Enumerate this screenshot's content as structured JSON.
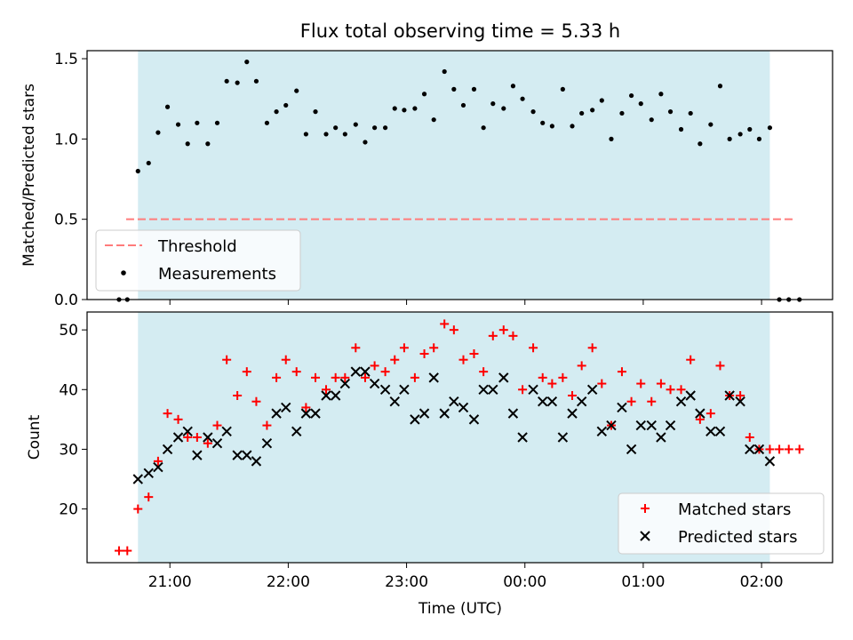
{
  "chart_data": {
    "title": "Flux total observing time = 5.33 h",
    "xlabel": "Time (UTC)",
    "x_unit": "hours (UTC)",
    "xlim": [
      20.3,
      26.6
    ],
    "xticks": [
      {
        "value": 21,
        "label": "21:00"
      },
      {
        "value": 22,
        "label": "22:00"
      },
      {
        "value": 23,
        "label": "23:00"
      },
      {
        "value": 24,
        "label": "00:00"
      },
      {
        "value": 25,
        "label": "01:00"
      },
      {
        "value": 26,
        "label": "02:00"
      }
    ],
    "observing_window": [
      20.73,
      26.07
    ],
    "window_color": "#d4ecf2",
    "panels": [
      {
        "type": "scatter",
        "ylabel": "Matched/Predicted stars",
        "ylim": [
          0,
          1.55
        ],
        "yticks": [
          "0.0",
          "0.5",
          "1.0",
          "1.5"
        ],
        "legend_position": "lower-left",
        "threshold": {
          "name": "Threshold",
          "value": 0.5,
          "x_range": [
            20.63,
            26.27
          ],
          "color": "#ff7b7b"
        },
        "series": [
          {
            "name": "Measurements",
            "color": "#000000",
            "marker": "dot",
            "points": [
              [
                20.57,
                0
              ],
              [
                20.64,
                0
              ],
              [
                20.73,
                0.8
              ],
              [
                20.82,
                0.85
              ],
              [
                20.9,
                1.04
              ],
              [
                20.98,
                1.2
              ],
              [
                21.07,
                1.09
              ],
              [
                21.15,
                0.97
              ],
              [
                21.23,
                1.1
              ],
              [
                21.32,
                0.97
              ],
              [
                21.4,
                1.1
              ],
              [
                21.48,
                1.36
              ],
              [
                21.57,
                1.35
              ],
              [
                21.65,
                1.48
              ],
              [
                21.73,
                1.36
              ],
              [
                21.82,
                1.1
              ],
              [
                21.9,
                1.17
              ],
              [
                21.98,
                1.21
              ],
              [
                22.07,
                1.3
              ],
              [
                22.15,
                1.03
              ],
              [
                22.23,
                1.17
              ],
              [
                22.32,
                1.03
              ],
              [
                22.4,
                1.07
              ],
              [
                22.48,
                1.03
              ],
              [
                22.57,
                1.09
              ],
              [
                22.65,
                0.98
              ],
              [
                22.73,
                1.07
              ],
              [
                22.82,
                1.07
              ],
              [
                22.9,
                1.19
              ],
              [
                22.98,
                1.18
              ],
              [
                23.07,
                1.19
              ],
              [
                23.15,
                1.28
              ],
              [
                23.23,
                1.12
              ],
              [
                23.32,
                1.42
              ],
              [
                23.4,
                1.31
              ],
              [
                23.48,
                1.21
              ],
              [
                23.57,
                1.31
              ],
              [
                23.65,
                1.07
              ],
              [
                23.73,
                1.22
              ],
              [
                23.82,
                1.19
              ],
              [
                23.9,
                1.33
              ],
              [
                23.98,
                1.25
              ],
              [
                24.07,
                1.17
              ],
              [
                24.15,
                1.1
              ],
              [
                24.23,
                1.08
              ],
              [
                24.32,
                1.31
              ],
              [
                24.4,
                1.08
              ],
              [
                24.48,
                1.16
              ],
              [
                24.57,
                1.18
              ],
              [
                24.65,
                1.24
              ],
              [
                24.73,
                1.0
              ],
              [
                24.82,
                1.16
              ],
              [
                24.9,
                1.27
              ],
              [
                24.98,
                1.22
              ],
              [
                25.07,
                1.12
              ],
              [
                25.15,
                1.28
              ],
              [
                25.23,
                1.17
              ],
              [
                25.32,
                1.06
              ],
              [
                25.4,
                1.16
              ],
              [
                25.48,
                0.97
              ],
              [
                25.57,
                1.09
              ],
              [
                25.65,
                1.33
              ],
              [
                25.73,
                1.0
              ],
              [
                25.82,
                1.03
              ],
              [
                25.9,
                1.06
              ],
              [
                25.98,
                1.0
              ],
              [
                26.07,
                1.07
              ],
              [
                26.15,
                0
              ],
              [
                26.23,
                0
              ],
              [
                26.32,
                0
              ]
            ]
          }
        ]
      },
      {
        "type": "scatter",
        "ylabel": "Count",
        "ylim": [
          11,
          53
        ],
        "yticks": [
          "20",
          "30",
          "40",
          "50"
        ],
        "legend_position": "lower-right",
        "series": [
          {
            "name": "Matched stars",
            "color": "#ff0000",
            "marker": "plus",
            "points": [
              [
                20.57,
                13
              ],
              [
                20.64,
                13
              ],
              [
                20.73,
                20
              ],
              [
                20.82,
                22
              ],
              [
                20.9,
                28
              ],
              [
                20.98,
                36
              ],
              [
                21.07,
                35
              ],
              [
                21.15,
                32
              ],
              [
                21.23,
                32
              ],
              [
                21.32,
                31
              ],
              [
                21.4,
                34
              ],
              [
                21.48,
                45
              ],
              [
                21.57,
                39
              ],
              [
                21.65,
                43
              ],
              [
                21.73,
                38
              ],
              [
                21.82,
                34
              ],
              [
                21.9,
                42
              ],
              [
                21.98,
                45
              ],
              [
                22.07,
                43
              ],
              [
                22.15,
                37
              ],
              [
                22.23,
                42
              ],
              [
                22.32,
                40
              ],
              [
                22.4,
                42
              ],
              [
                22.48,
                42
              ],
              [
                22.57,
                47
              ],
              [
                22.65,
                42
              ],
              [
                22.73,
                44
              ],
              [
                22.82,
                43
              ],
              [
                22.9,
                45
              ],
              [
                22.98,
                47
              ],
              [
                23.07,
                42
              ],
              [
                23.15,
                46
              ],
              [
                23.23,
                47
              ],
              [
                23.32,
                51
              ],
              [
                23.4,
                50
              ],
              [
                23.48,
                45
              ],
              [
                23.57,
                46
              ],
              [
                23.65,
                43
              ],
              [
                23.73,
                49
              ],
              [
                23.82,
                50
              ],
              [
                23.9,
                49
              ],
              [
                23.98,
                40
              ],
              [
                24.07,
                47
              ],
              [
                24.15,
                42
              ],
              [
                24.23,
                41
              ],
              [
                24.32,
                42
              ],
              [
                24.4,
                39
              ],
              [
                24.48,
                44
              ],
              [
                24.57,
                47
              ],
              [
                24.65,
                41
              ],
              [
                24.73,
                34
              ],
              [
                24.82,
                43
              ],
              [
                24.9,
                38
              ],
              [
                24.98,
                41
              ],
              [
                25.07,
                38
              ],
              [
                25.15,
                41
              ],
              [
                25.23,
                40
              ],
              [
                25.32,
                40
              ],
              [
                25.4,
                45
              ],
              [
                25.48,
                35
              ],
              [
                25.57,
                36
              ],
              [
                25.65,
                44
              ],
              [
                25.73,
                39
              ],
              [
                25.82,
                39
              ],
              [
                25.9,
                32
              ],
              [
                25.98,
                30
              ],
              [
                26.07,
                30
              ],
              [
                26.15,
                30
              ],
              [
                26.23,
                30
              ],
              [
                26.32,
                30
              ]
            ]
          },
          {
            "name": "Predicted stars",
            "color": "#000000",
            "marker": "x",
            "points": [
              [
                20.73,
                25
              ],
              [
                20.82,
                26
              ],
              [
                20.9,
                27
              ],
              [
                20.98,
                30
              ],
              [
                21.07,
                32
              ],
              [
                21.15,
                33
              ],
              [
                21.23,
                29
              ],
              [
                21.32,
                32
              ],
              [
                21.4,
                31
              ],
              [
                21.48,
                33
              ],
              [
                21.57,
                29
              ],
              [
                21.65,
                29
              ],
              [
                21.73,
                28
              ],
              [
                21.82,
                31
              ],
              [
                21.9,
                36
              ],
              [
                21.98,
                37
              ],
              [
                22.07,
                33
              ],
              [
                22.15,
                36
              ],
              [
                22.23,
                36
              ],
              [
                22.32,
                39
              ],
              [
                22.4,
                39
              ],
              [
                22.48,
                41
              ],
              [
                22.57,
                43
              ],
              [
                22.65,
                43
              ],
              [
                22.73,
                41
              ],
              [
                22.82,
                40
              ],
              [
                22.9,
                38
              ],
              [
                22.98,
                40
              ],
              [
                23.07,
                35
              ],
              [
                23.15,
                36
              ],
              [
                23.23,
                42
              ],
              [
                23.32,
                36
              ],
              [
                23.4,
                38
              ],
              [
                23.48,
                37
              ],
              [
                23.57,
                35
              ],
              [
                23.65,
                40
              ],
              [
                23.73,
                40
              ],
              [
                23.82,
                42
              ],
              [
                23.9,
                36
              ],
              [
                23.98,
                32
              ],
              [
                24.07,
                40
              ],
              [
                24.15,
                38
              ],
              [
                24.23,
                38
              ],
              [
                24.32,
                32
              ],
              [
                24.4,
                36
              ],
              [
                24.48,
                38
              ],
              [
                24.57,
                40
              ],
              [
                24.65,
                33
              ],
              [
                24.73,
                34
              ],
              [
                24.82,
                37
              ],
              [
                24.9,
                30
              ],
              [
                24.98,
                34
              ],
              [
                25.07,
                34
              ],
              [
                25.15,
                32
              ],
              [
                25.23,
                34
              ],
              [
                25.32,
                38
              ],
              [
                25.4,
                39
              ],
              [
                25.48,
                36
              ],
              [
                25.57,
                33
              ],
              [
                25.65,
                33
              ],
              [
                25.73,
                39
              ],
              [
                25.82,
                38
              ],
              [
                25.9,
                30
              ],
              [
                25.98,
                30
              ],
              [
                26.07,
                28
              ]
            ]
          }
        ]
      }
    ]
  }
}
